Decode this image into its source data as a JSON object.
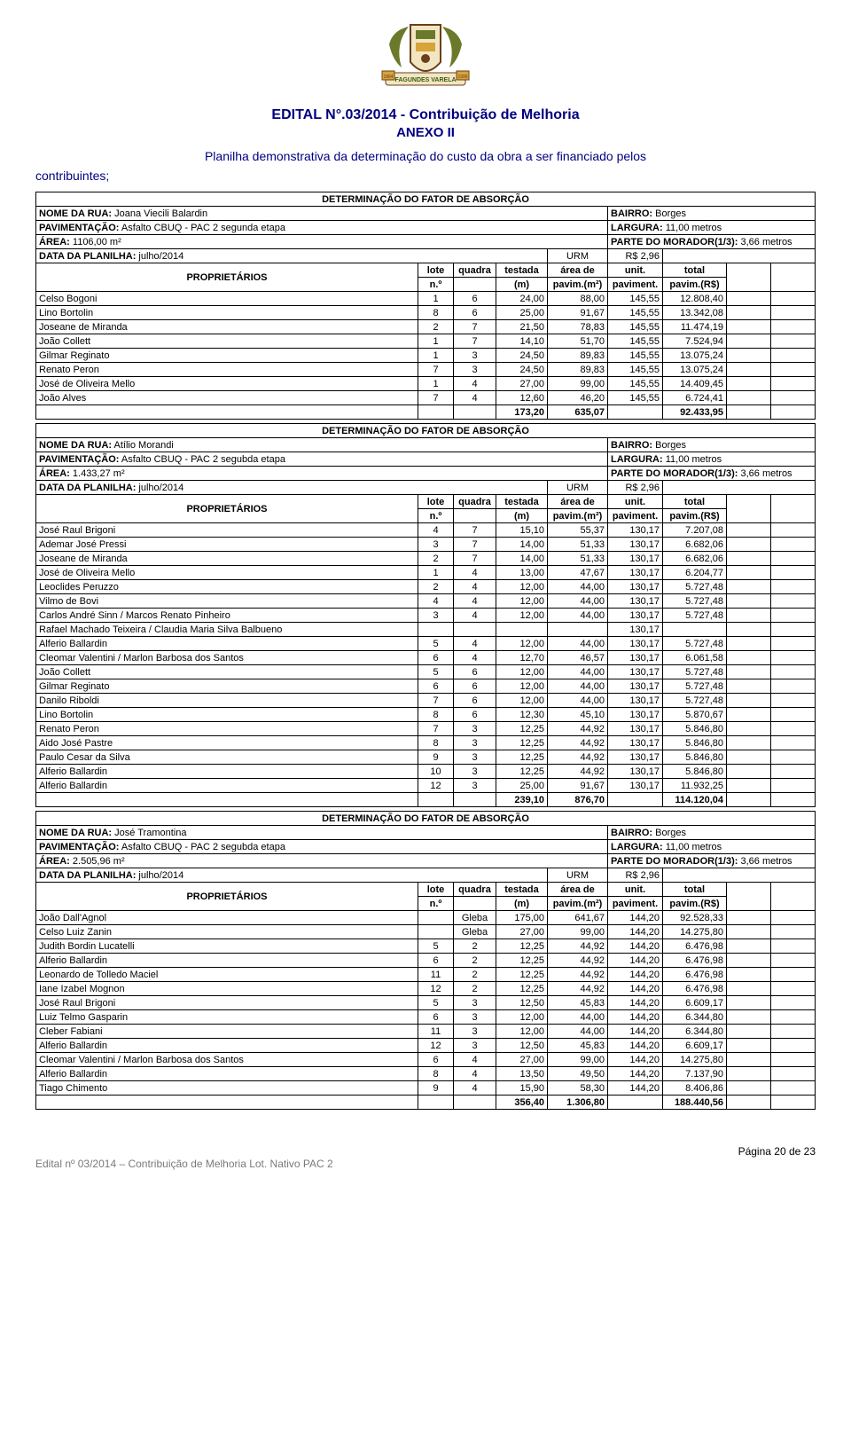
{
  "doc": {
    "title": "EDITAL N°.03/2014 - Contribuição de Melhoria",
    "subtitle": "ANEXO II",
    "intro": "Planilha demonstrativa da determinação do custo da obra a ser financiado pelos",
    "contrib": "contribuintes;",
    "section_header": "DETERMINAÇÃO DO FATOR DE ABSORÇÃO",
    "col": {
      "prop": "PROPRIETÁRIOS",
      "lote": "lote",
      "quadra": "quadra",
      "test": "testada",
      "area": "área de",
      "unit": "unit.",
      "total": "total",
      "no": "n.º",
      "m": "(m)",
      "pavm2": "pavim.(m²)",
      "paviment": "paviment.",
      "pavrs": "pavim.(R$)"
    },
    "crest_colors": {
      "olive": "#6b7a2a",
      "gold": "#d6a43b",
      "brown": "#6b3f1a",
      "cream": "#f2e6c2",
      "text": "#3a5a1a"
    }
  },
  "blocks": [
    {
      "meta": {
        "nome": "NOME DA RUA: Joana Viecili Balardin",
        "bairro": "BAIRRO: Borges",
        "pav": "PAVIMENTAÇÃO: Asfalto CBUQ - PAC 2 segunda etapa",
        "largura": "LARGURA: 11,00 metros",
        "area": "ÁREA: 1106,00 m²",
        "parte": "PARTE DO MORADOR(1/3): 3,66 metros",
        "data": "DATA DA PLANILHA: julho/2014",
        "urm": "URM",
        "urm_val": "R$ 2,96"
      },
      "rows": [
        [
          "Celso Bogoni",
          "1",
          "6",
          "24,00",
          "88,00",
          "145,55",
          "12.808,40"
        ],
        [
          "Lino Bortolin",
          "8",
          "6",
          "25,00",
          "91,67",
          "145,55",
          "13.342,08"
        ],
        [
          "Joseane de Miranda",
          "2",
          "7",
          "21,50",
          "78,83",
          "145,55",
          "11.474,19"
        ],
        [
          "João Collett",
          "1",
          "7",
          "14,10",
          "51,70",
          "145,55",
          "7.524,94"
        ],
        [
          "Gilmar Reginato",
          "1",
          "3",
          "24,50",
          "89,83",
          "145,55",
          "13.075,24"
        ],
        [
          "Renato Peron",
          "7",
          "3",
          "24,50",
          "89,83",
          "145,55",
          "13.075,24"
        ],
        [
          "José de Oliveira Mello",
          "1",
          "4",
          "27,00",
          "99,00",
          "145,55",
          "14.409,45"
        ],
        [
          "João Alves",
          "7",
          "4",
          "12,60",
          "46,20",
          "145,55",
          "6.724,41"
        ]
      ],
      "total": [
        "",
        "",
        "",
        "173,20",
        "635,07",
        "",
        "92.433,95"
      ]
    },
    {
      "meta": {
        "nome": "NOME DA RUA: Atílio Morandi",
        "bairro": "BAIRRO: Borges",
        "pav": "PAVIMENTAÇÃO: Asfalto CBUQ - PAC 2 segubda etapa",
        "largura": "LARGURA: 11,00 metros",
        "area": "ÁREA: 1.433,27 m²",
        "parte": "PARTE DO MORADOR(1/3): 3,66 metros",
        "data": "DATA DA PLANILHA: julho/2014",
        "urm": "URM",
        "urm_val": "R$ 2,96"
      },
      "rows": [
        [
          "José Raul Brigoni",
          "4",
          "7",
          "15,10",
          "55,37",
          "130,17",
          "7.207,08"
        ],
        [
          "Ademar José Pressi",
          "3",
          "7",
          "14,00",
          "51,33",
          "130,17",
          "6.682,06"
        ],
        [
          "Joseane de Miranda",
          "2",
          "7",
          "14,00",
          "51,33",
          "130,17",
          "6.682,06"
        ],
        [
          "José de Oliveira Mello",
          "1",
          "4",
          "13,00",
          "47,67",
          "130,17",
          "6.204,77"
        ],
        [
          "Leoclides Peruzzo",
          "2",
          "4",
          "12,00",
          "44,00",
          "130,17",
          "5.727,48"
        ],
        [
          "Vilmo de Bovi",
          "4",
          "4",
          "12,00",
          "44,00",
          "130,17",
          "5.727,48"
        ],
        [
          "Carlos André Sinn / Marcos Renato Pinheiro",
          "3",
          "4",
          "12,00",
          "44,00",
          "130,17",
          "5.727,48"
        ],
        [
          "Rafael Machado Teixeira / Claudia Maria Silva Balbueno",
          "",
          "",
          "",
          "",
          "130,17",
          ""
        ],
        [
          "Alferio Ballardin",
          "5",
          "4",
          "12,00",
          "44,00",
          "130,17",
          "5.727,48"
        ],
        [
          "Cleomar Valentini / Marlon Barbosa dos Santos",
          "6",
          "4",
          "12,70",
          "46,57",
          "130,17",
          "6.061,58"
        ],
        [
          "João Collett",
          "5",
          "6",
          "12,00",
          "44,00",
          "130,17",
          "5.727,48"
        ],
        [
          "Gilmar Reginato",
          "6",
          "6",
          "12,00",
          "44,00",
          "130,17",
          "5.727,48"
        ],
        [
          "Danilo Riboldi",
          "7",
          "6",
          "12,00",
          "44,00",
          "130,17",
          "5.727,48"
        ],
        [
          "Lino Bortolin",
          "8",
          "6",
          "12,30",
          "45,10",
          "130,17",
          "5.870,67"
        ],
        [
          "Renato Peron",
          "7",
          "3",
          "12,25",
          "44,92",
          "130,17",
          "5.846,80"
        ],
        [
          "Aido José Pastre",
          "8",
          "3",
          "12,25",
          "44,92",
          "130,17",
          "5.846,80"
        ],
        [
          "Paulo Cesar da Silva",
          "9",
          "3",
          "12,25",
          "44,92",
          "130,17",
          "5.846,80"
        ],
        [
          "Alferio Ballardin",
          "10",
          "3",
          "12,25",
          "44,92",
          "130,17",
          "5.846,80"
        ],
        [
          "Alferio Ballardin",
          "12",
          "3",
          "25,00",
          "91,67",
          "130,17",
          "11.932,25"
        ]
      ],
      "total": [
        "",
        "",
        "",
        "239,10",
        "876,70",
        "",
        "114.120,04"
      ]
    },
    {
      "meta": {
        "nome": "NOME DA RUA: José Tramontina",
        "bairro": "BAIRRO: Borges",
        "pav": "PAVIMENTAÇÃO: Asfalto CBUQ - PAC 2 segubda etapa",
        "largura": "LARGURA: 11,00 metros",
        "area": "ÁREA: 2.505,96 m²",
        "parte": "PARTE DO MORADOR(1/3): 3,66 metros",
        "data": "DATA DA PLANILHA: julho/2014",
        "urm": "URM",
        "urm_val": "R$ 2,96"
      },
      "rows": [
        [
          "João Dall'Agnol",
          "",
          "Gleba",
          "175,00",
          "641,67",
          "144,20",
          "92.528,33"
        ],
        [
          "Celso Luiz Zanin",
          "",
          "Gleba",
          "27,00",
          "99,00",
          "144,20",
          "14.275,80"
        ],
        [
          "Judith Bordin Lucatelli",
          "5",
          "2",
          "12,25",
          "44,92",
          "144,20",
          "6.476,98"
        ],
        [
          "Alferio Ballardin",
          "6",
          "2",
          "12,25",
          "44,92",
          "144,20",
          "6.476,98"
        ],
        [
          "Leonardo de Tolledo Maciel",
          "11",
          "2",
          "12,25",
          "44,92",
          "144,20",
          "6.476,98"
        ],
        [
          "Iane Izabel Mognon",
          "12",
          "2",
          "12,25",
          "44,92",
          "144,20",
          "6.476,98"
        ],
        [
          "José Raul Brigoni",
          "5",
          "3",
          "12,50",
          "45,83",
          "144,20",
          "6.609,17"
        ],
        [
          "Luiz Telmo Gasparin",
          "6",
          "3",
          "12,00",
          "44,00",
          "144,20",
          "6.344,80"
        ],
        [
          "Cleber Fabiani",
          "11",
          "3",
          "12,00",
          "44,00",
          "144,20",
          "6.344,80"
        ],
        [
          "Alferio Ballardin",
          "12",
          "3",
          "12,50",
          "45,83",
          "144,20",
          "6.609,17"
        ],
        [
          "Cleomar Valentini / Marlon Barbosa dos Santos",
          "6",
          "4",
          "27,00",
          "99,00",
          "144,20",
          "14.275,80"
        ],
        [
          "Alferio Ballardin",
          "8",
          "4",
          "13,50",
          "49,50",
          "144,20",
          "7.137,90"
        ],
        [
          "Tiago Chimento",
          "9",
          "4",
          "15,90",
          "58,30",
          "144,20",
          "8.406,86"
        ]
      ],
      "total": [
        "",
        "",
        "",
        "356,40",
        "1.306,80",
        "",
        "188.440,56"
      ]
    }
  ],
  "footer": {
    "page": "Página 20 de 23",
    "line": "Edital nº 03/2014 – Contribuição de Melhoria Lot. Nativo PAC 2"
  }
}
